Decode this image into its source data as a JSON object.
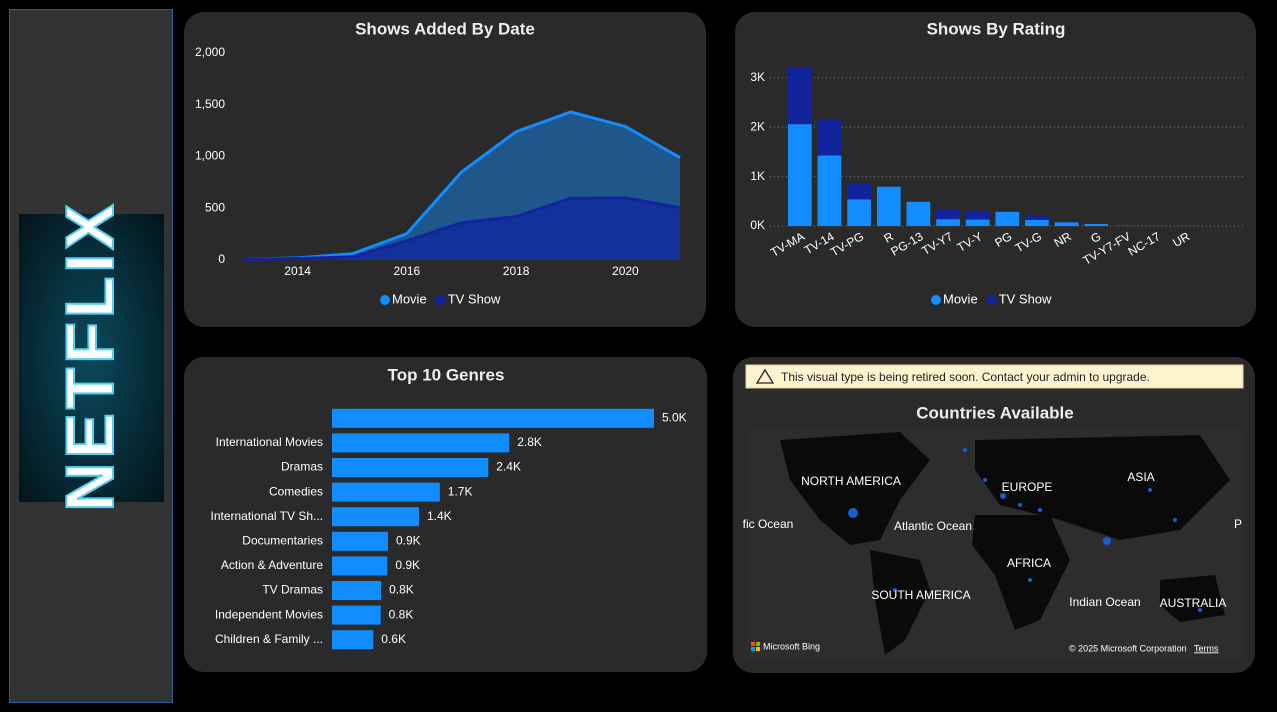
{
  "logo": "NETFLIX",
  "chart_data": [
    {
      "type": "area",
      "title": "Shows Added By Date",
      "x": [
        2013,
        2014,
        2015,
        2016,
        2017,
        2018,
        2019,
        2020,
        2021
      ],
      "series": [
        {
          "name": "Movie",
          "color": "#118dff",
          "values": [
            5,
            20,
            60,
            255,
            850,
            1240,
            1430,
            1290,
            990
          ]
        },
        {
          "name": "TV Show",
          "color": "#12239e",
          "values": [
            5,
            15,
            30,
            185,
            360,
            420,
            595,
            600,
            505
          ]
        }
      ],
      "xlim": [
        2013,
        2021
      ],
      "xticks": [
        2014,
        2016,
        2018,
        2020
      ],
      "ylim": [
        0,
        2000
      ],
      "yticks": [
        0,
        500,
        {
          "value": 1000,
          "label": "1,000"
        },
        {
          "value": 1500,
          "label": "1,500"
        },
        {
          "value": 2000,
          "label": "2,000"
        }
      ],
      "legend": "bottom"
    },
    {
      "type": "stacked-bar",
      "title": "Shows By Rating",
      "categories": [
        "TV-MA",
        "TV-14",
        "TV-PG",
        "R",
        "PG-13",
        "TV-Y7",
        "TV-Y",
        "PG",
        "TV-G",
        "NR",
        "G",
        "TV-Y7-FV",
        "NC-17",
        "UR"
      ],
      "series": [
        {
          "name": "Movie",
          "color": "#118dff",
          "values": [
            2062,
            1427,
            540,
            797,
            490,
            139,
            131,
            287,
            126,
            75,
            41,
            5,
            3,
            3
          ]
        },
        {
          "name": "TV Show",
          "color": "#12239e",
          "values": [
            1145,
            733,
            323,
            2,
            0,
            195,
            176,
            0,
            94,
            5,
            0,
            1,
            0,
            0
          ]
        }
      ],
      "ylim": [
        0,
        3400
      ],
      "yticks": [
        {
          "value": 0,
          "label": "0K"
        },
        {
          "value": 1000,
          "label": "1K"
        },
        {
          "value": 2000,
          "label": "2K"
        },
        {
          "value": 3000,
          "label": "3K"
        }
      ],
      "grid": true,
      "legend": "bottom"
    },
    {
      "type": "hbar",
      "title": "Top 10 Genres",
      "categories": [
        null,
        "International Movies",
        "Dramas",
        "Comedies",
        "International TV Sh...",
        "Documentaries",
        "Action & Adventure",
        "TV Dramas",
        "Independent Movies",
        "Children & Family ..."
      ],
      "values": [
        5000,
        2752,
        2427,
        1674,
        1351,
        869,
        859,
        763,
        756,
        641
      ],
      "value_labels": [
        "5.0K",
        "2.8K",
        "2.4K",
        "1.7K",
        "1.4K",
        "0.9K",
        "0.9K",
        "0.8K",
        "0.8K",
        "0.6K"
      ],
      "color": "#118dff",
      "xlim": [
        0,
        5000
      ]
    }
  ],
  "map": {
    "warning": "This visual type is being retired soon. Contact your admin to upgrade.",
    "title": "Countries Available",
    "labels": [
      "NORTH AMERICA",
      "Atlantic Ocean",
      "EUROPE",
      "ASIA",
      "AFRICA",
      "SOUTH AMERICA",
      "Indian Ocean",
      "AUSTRALIA",
      "fic Ocean",
      "P"
    ],
    "attribution": "Microsoft Bing",
    "copyright": "© 2025 Microsoft Corporation",
    "terms": "Terms"
  }
}
